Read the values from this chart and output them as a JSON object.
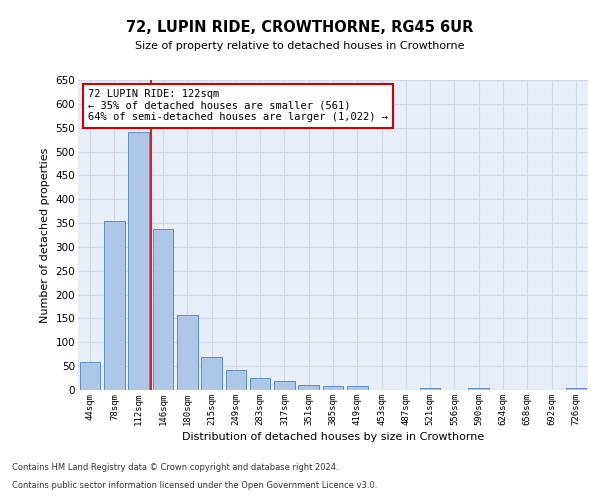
{
  "title1": "72, LUPIN RIDE, CROWTHORNE, RG45 6UR",
  "title2": "Size of property relative to detached houses in Crowthorne",
  "xlabel": "Distribution of detached houses by size in Crowthorne",
  "ylabel": "Number of detached properties",
  "categories": [
    "44sqm",
    "78sqm",
    "112sqm",
    "146sqm",
    "180sqm",
    "215sqm",
    "249sqm",
    "283sqm",
    "317sqm",
    "351sqm",
    "385sqm",
    "419sqm",
    "453sqm",
    "487sqm",
    "521sqm",
    "556sqm",
    "590sqm",
    "624sqm",
    "658sqm",
    "692sqm",
    "726sqm"
  ],
  "values": [
    58,
    355,
    540,
    338,
    157,
    70,
    42,
    25,
    18,
    10,
    8,
    8,
    0,
    0,
    5,
    0,
    5,
    0,
    0,
    0,
    5
  ],
  "bar_color": "#aec6e8",
  "bar_edge_color": "#5a8fc2",
  "vline_x_index": 2,
  "vline_color": "#cc0000",
  "annotation_text": "72 LUPIN RIDE: 122sqm\n← 35% of detached houses are smaller (561)\n64% of semi-detached houses are larger (1,022) →",
  "annotation_box_color": "#ffffff",
  "annotation_box_edge": "#cc0000",
  "ylim": [
    0,
    650
  ],
  "yticks": [
    0,
    50,
    100,
    150,
    200,
    250,
    300,
    350,
    400,
    450,
    500,
    550,
    600,
    650
  ],
  "grid_color": "#d0d8e8",
  "background_color": "#e8eef8",
  "footer_line1": "Contains HM Land Registry data © Crown copyright and database right 2024.",
  "footer_line2": "Contains public sector information licensed under the Open Government Licence v3.0."
}
